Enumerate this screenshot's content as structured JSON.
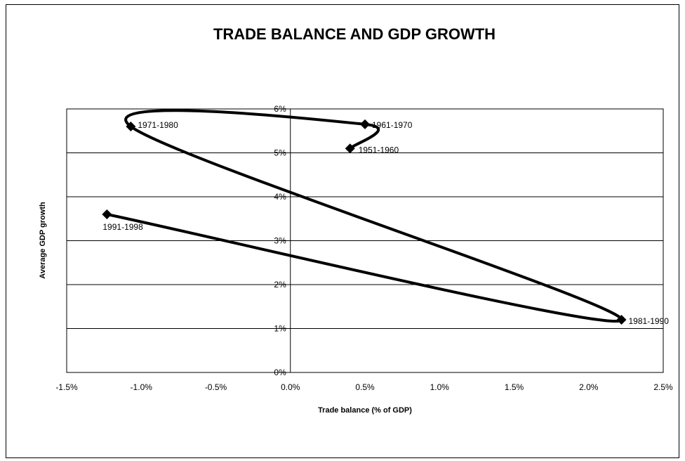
{
  "chart_data": {
    "type": "scatter",
    "title": "TRADE BALANCE AND GDP GROWTH",
    "xlabel": "Trade balance (% of GDP)",
    "ylabel": "Average GDP growth",
    "xlim": [
      -1.5,
      2.5
    ],
    "ylim": [
      0,
      6
    ],
    "x_ticks": [
      "-1.5%",
      "-1.0%",
      "-0.5%",
      "0.0%",
      "0.5%",
      "1.0%",
      "1.5%",
      "2.0%",
      "2.5%"
    ],
    "y_ticks": [
      "0%",
      "1%",
      "2%",
      "3%",
      "4%",
      "5%",
      "6%"
    ],
    "grid": "horizontal",
    "connected": "smoothed",
    "marker": "diamond",
    "series": [
      {
        "points": [
          {
            "label": "1951-1960",
            "x": 0.4,
            "y": 5.1
          },
          {
            "label": "1961-1970",
            "x": 0.5,
            "y": 5.65
          },
          {
            "label": "1971-1980",
            "x": -1.07,
            "y": 5.6
          },
          {
            "label": "1981-1990",
            "x": 2.22,
            "y": 1.2
          },
          {
            "label": "1991-1998",
            "x": -1.23,
            "y": 3.6
          }
        ]
      }
    ]
  }
}
